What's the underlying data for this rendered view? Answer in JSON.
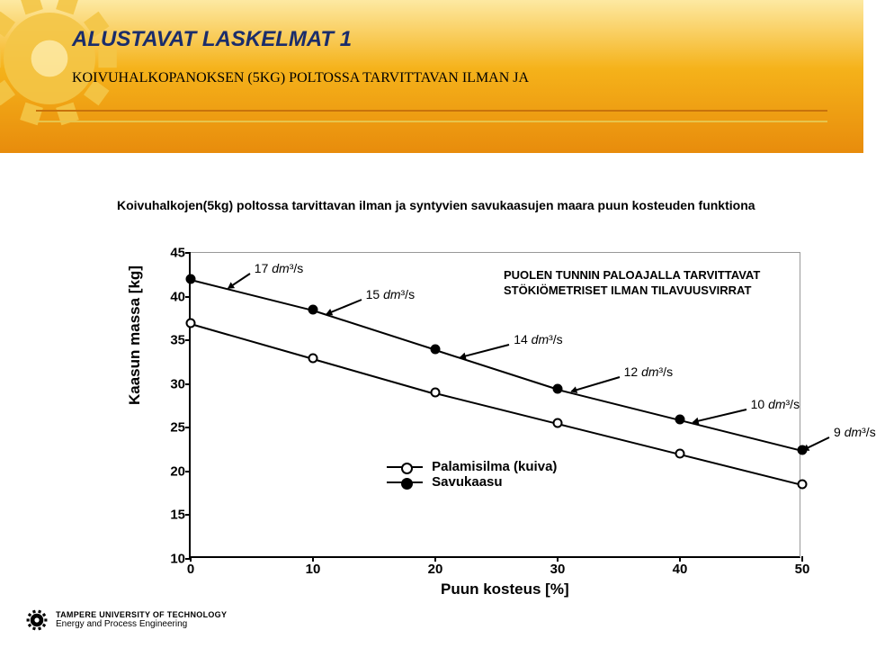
{
  "header": {
    "title": "ALUSTAVAT LASKELMAT 1",
    "title_color": "#1b2d6b",
    "title_fontsize": 24,
    "subtitle": "KOIVUHALKOPANOKSEN (5KG) POLTOSSA TARVITTAVAN ILMAN JA",
    "subtitle_fontsize": 16,
    "banner_top_color": "#fde9a2",
    "banner_bottom_color": "#e88c0c",
    "gear_color": "#f4c647"
  },
  "chart": {
    "type": "line",
    "title": "Koivuhalkojen(5kg) poltossa tarvittavan ilman ja syntyvien savukaasujen maara puun kosteuden funktiona",
    "title_fontsize": 14,
    "xlabel": "Puun kosteus [%]",
    "ylabel": "Kaasun massa [kg]",
    "label_fontsize": 17,
    "xlim": [
      0,
      50
    ],
    "ylim": [
      10,
      45
    ],
    "xtick_step": 10,
    "ytick_step": 5,
    "background_color": "#ffffff",
    "series": [
      {
        "name": "Savukaasu",
        "marker": "filled",
        "x": [
          0,
          10,
          20,
          30,
          40,
          50
        ],
        "y": [
          42,
          38.5,
          34,
          29.5,
          26,
          22.5
        ]
      },
      {
        "name": "Palamisilma (kuiva)",
        "marker": "open",
        "x": [
          0,
          10,
          20,
          30,
          40,
          50
        ],
        "y": [
          37,
          33,
          29,
          25.5,
          22,
          18.5
        ]
      }
    ],
    "annotations": [
      {
        "text": "17 dm³/s",
        "at_x": 3,
        "at_series": 0
      },
      {
        "text": "15 dm³/s",
        "at_x": 11,
        "at_series": 0
      },
      {
        "text": "14 dm³/s",
        "at_x": 22,
        "at_series": 0
      },
      {
        "text": "12 dm³/s",
        "at_x": 31,
        "at_series": 0
      },
      {
        "text": "10 dm³/s",
        "at_x": 41,
        "at_series": 0
      },
      {
        "text": "9 dm³/s",
        "at_x": 50,
        "at_series": 0
      }
    ],
    "note": {
      "line1": "PUOLEN TUNNIN PALOAJALLA TARVITTAVAT",
      "line2": "STÖKIÖMETRISET ILMAN TILAVUUSVIRRAT"
    },
    "legend": {
      "items": [
        {
          "label": "Palamisilma (kuiva)",
          "marker": "open"
        },
        {
          "label": "Savukaasu",
          "marker": "filled"
        }
      ]
    }
  },
  "footer": {
    "university": "TAMPERE UNIVERSITY OF TECHNOLOGY",
    "department": "Energy and Process Engineering"
  }
}
